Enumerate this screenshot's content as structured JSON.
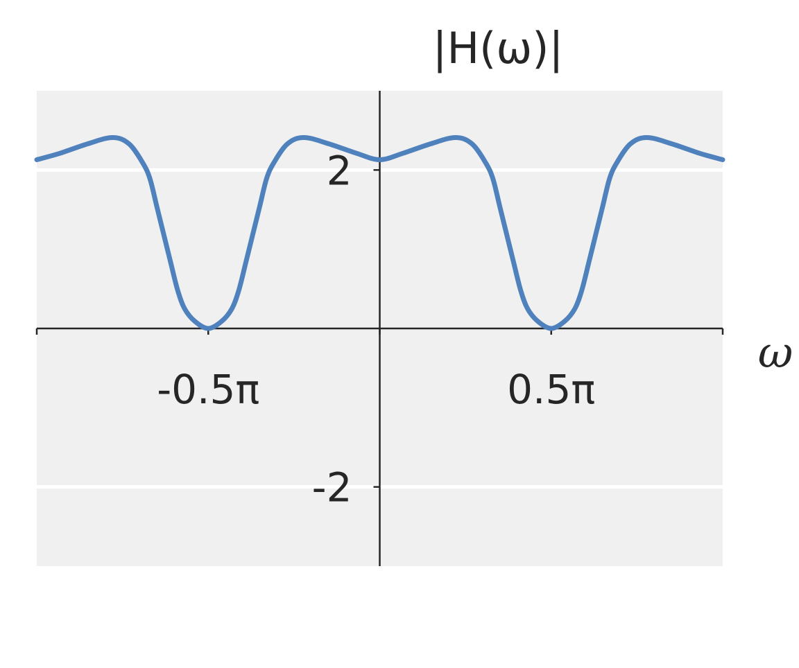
{
  "chart_data": {
    "type": "line",
    "title": "|H(ω)|",
    "xlabel": "ω",
    "ylabel": "",
    "x_unit": "π",
    "xlim": [
      -1,
      1
    ],
    "ylim": [
      -3,
      3
    ],
    "grid": true,
    "x_ticks": [
      {
        "value": -1,
        "label": ""
      },
      {
        "value": -0.5,
        "label": "-0.5π"
      },
      {
        "value": 0,
        "label": ""
      },
      {
        "value": 0.5,
        "label": "0.5π"
      },
      {
        "value": 1,
        "label": ""
      }
    ],
    "y_ticks": [
      {
        "value": 2,
        "label": "2"
      },
      {
        "value": -2,
        "label": "-2"
      }
    ],
    "colors": {
      "background": "#f0f0f0",
      "line": "#4f81bd",
      "axis": "#262626",
      "grid": "#ffffff"
    },
    "series": [
      {
        "x": [
          -1,
          -0.933,
          -0.852,
          -0.779,
          -0.731,
          -0.691,
          -0.67,
          -0.65,
          -0.63,
          -0.61,
          -0.589,
          -0.569,
          -0.539,
          -0.5,
          -0.461,
          -0.431,
          -0.411,
          -0.39,
          -0.37,
          -0.35,
          -0.33,
          -0.309,
          -0.269,
          -0.221,
          -0.148,
          -0.067,
          0,
          0.067,
          0.148,
          0.221,
          0.269,
          0.309,
          0.33,
          0.35,
          0.37,
          0.39,
          0.411,
          0.431,
          0.461,
          0.5,
          0.539,
          0.569,
          0.589,
          0.61,
          0.63,
          0.65,
          0.67,
          0.691,
          0.731,
          0.779,
          0.852,
          0.933,
          1
        ],
        "y": [
          2.13,
          2.21,
          2.33,
          2.41,
          2.33,
          2.09,
          1.89,
          1.54,
          1.19,
          0.84,
          0.48,
          0.25,
          0.09,
          0,
          0.09,
          0.25,
          0.48,
          0.84,
          1.19,
          1.54,
          1.89,
          2.09,
          2.33,
          2.41,
          2.33,
          2.21,
          2.13,
          2.21,
          2.33,
          2.41,
          2.33,
          2.09,
          1.89,
          1.54,
          1.19,
          0.84,
          0.48,
          0.25,
          0.09,
          0,
          0.09,
          0.25,
          0.48,
          0.84,
          1.19,
          1.54,
          1.89,
          2.09,
          2.33,
          2.41,
          2.33,
          2.21,
          2.13
        ]
      }
    ]
  }
}
